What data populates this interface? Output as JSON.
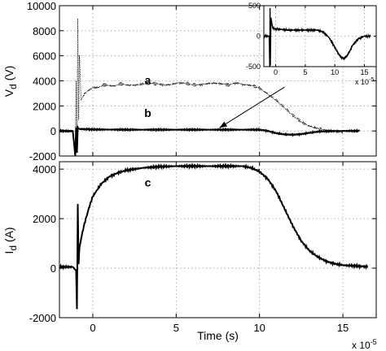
{
  "chart_data": [
    {
      "id": "top",
      "type": "line",
      "ylabel_main": "V",
      "ylabel_sub": "d",
      "ylabel_unit": " (V)",
      "ylim": [
        -2000,
        10000
      ],
      "xlim": [
        -2,
        17
      ],
      "yticks": [
        -2000,
        0,
        2000,
        4000,
        6000,
        8000,
        10000
      ],
      "xticks": [
        0,
        5,
        10,
        15
      ],
      "grid": true,
      "annotations": [
        {
          "text": "a",
          "x": 3.3,
          "y": 3750
        },
        {
          "text": "b",
          "x": 3.3,
          "y": 1100
        }
      ],
      "series": [
        {
          "style": "dotted-noisy",
          "x": [
            -2,
            -1.2,
            -1.05,
            -1.0,
            -0.95,
            -0.9,
            -0.85,
            -0.8,
            -0.7,
            -0.5,
            0,
            1,
            2,
            4,
            6,
            8,
            9,
            9.5,
            10,
            10.5,
            11,
            11.5,
            12,
            12.5,
            13,
            13.5,
            14,
            14.5,
            15
          ],
          "y": [
            0,
            0,
            -1800,
            4000,
            -1500,
            9000,
            1000,
            6000,
            2500,
            3000,
            3500,
            3650,
            3700,
            3750,
            3750,
            3750,
            3750,
            3700,
            3500,
            3000,
            2500,
            1900,
            1300,
            800,
            450,
            250,
            120,
            40,
            0
          ]
        },
        {
          "style": "solid",
          "x": [
            -2,
            -1.2,
            -1.05,
            -1.0,
            -0.95,
            -0.9,
            -0.8,
            -0.6,
            0,
            2,
            4,
            6,
            8,
            9,
            10,
            10.5,
            11,
            11.5,
            12,
            12.5,
            13,
            13.5,
            14,
            15,
            16
          ],
          "y": [
            0,
            0,
            -2000,
            300,
            -1800,
            300,
            150,
            150,
            120,
            100,
            100,
            100,
            100,
            100,
            100,
            0,
            -180,
            -280,
            -300,
            -250,
            -150,
            -60,
            -20,
            0,
            0
          ]
        }
      ],
      "arrow": {
        "from": [
          11.5,
          3500
        ],
        "to": [
          7.6,
          250
        ]
      }
    },
    {
      "id": "inset",
      "type": "line",
      "ylim": [
        -500,
        500
      ],
      "xlim": [
        -2,
        17
      ],
      "yticks": [
        -500,
        0,
        500
      ],
      "xticks": [
        0,
        5,
        10,
        15
      ],
      "exponent_base": "x 10",
      "exponent_power": "-5",
      "grid": true,
      "series": [
        {
          "style": "solid",
          "x": [
            -2,
            -1.1,
            -1.0,
            -0.95,
            -0.9,
            -0.8,
            -0.5,
            0,
            2,
            4,
            6,
            7,
            8,
            9,
            10,
            10.5,
            11,
            11.5,
            12,
            12.5,
            13,
            14,
            15,
            16
          ],
          "y": [
            0,
            0,
            -500,
            450,
            -480,
            300,
            130,
            120,
            100,
            100,
            100,
            100,
            70,
            -20,
            -180,
            -270,
            -340,
            -370,
            -330,
            -250,
            -150,
            -40,
            0,
            0
          ]
        }
      ]
    },
    {
      "id": "bottom",
      "type": "line",
      "xlabel": "Time (s)",
      "ylabel_main": "I",
      "ylabel_sub": "d",
      "ylabel_unit": " (A)",
      "ylim": [
        -2000,
        4300
      ],
      "xlim": [
        -2,
        17
      ],
      "yticks": [
        -2000,
        0,
        2000,
        4000
      ],
      "xticks": [
        0,
        5,
        10,
        15
      ],
      "exponent_base": "x 10",
      "exponent_power": "-5",
      "grid": true,
      "annotations": [
        {
          "text": "c",
          "x": 3.3,
          "y": 3300
        }
      ],
      "series": [
        {
          "style": "solid",
          "x": [
            -2,
            -1.2,
            -1.0,
            -0.95,
            -0.9,
            -0.85,
            -0.8,
            -0.7,
            -0.5,
            -0.2,
            0,
            0.5,
            1,
            1.5,
            2,
            3,
            4,
            5,
            6,
            7,
            8,
            9,
            9.5,
            10,
            10.5,
            11,
            11.5,
            12,
            12.5,
            13,
            13.5,
            14,
            14.5,
            15,
            16,
            16.5
          ],
          "y": [
            50,
            50,
            -100,
            -1700,
            2600,
            200,
            800,
            1200,
            1800,
            2500,
            2900,
            3400,
            3700,
            3850,
            3950,
            4050,
            4100,
            4120,
            4120,
            4120,
            4120,
            4120,
            4050,
            3900,
            3600,
            3100,
            2400,
            1700,
            1100,
            700,
            450,
            280,
            180,
            120,
            80,
            60
          ]
        }
      ]
    }
  ]
}
